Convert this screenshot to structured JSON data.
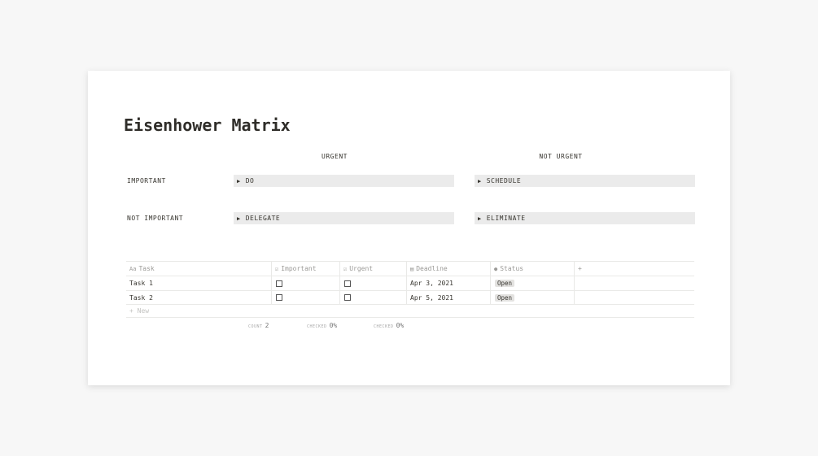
{
  "title": "Eisenhower Matrix",
  "matrix": {
    "columns": [
      "URGENT",
      "NOT URGENT"
    ],
    "rows": [
      {
        "label": "IMPORTANT",
        "cells": [
          "DO",
          "SCHEDULE"
        ]
      },
      {
        "label": "NOT IMPORTANT",
        "cells": [
          "DELEGATE",
          "ELIMINATE"
        ]
      }
    ]
  },
  "table": {
    "headers": [
      "Task",
      "Important",
      "Urgent",
      "Deadline",
      "Status",
      "+"
    ],
    "rows": [
      {
        "task": "Task 1",
        "important": false,
        "urgent": false,
        "deadline": "Apr 3, 2021",
        "status": "Open"
      },
      {
        "task": "Task 2",
        "important": false,
        "urgent": false,
        "deadline": "Apr 5, 2021",
        "status": "Open"
      }
    ],
    "new_label": "+ New",
    "footer": [
      {
        "key": "COUNT",
        "value": "2"
      },
      {
        "key": "CHECKED",
        "value": "0%"
      },
      {
        "key": "CHECKED",
        "value": "0%"
      }
    ]
  }
}
